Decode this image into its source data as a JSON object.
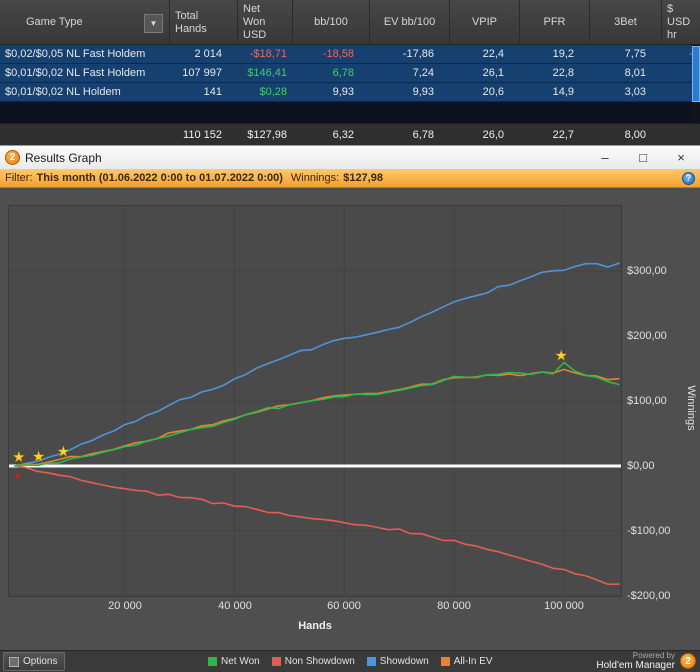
{
  "stats_table": {
    "columns": [
      "Game Type",
      "Total\nHands",
      "Net\nWon\nUSD",
      "bb/100",
      "EV bb/100",
      "VPIP",
      "PFR",
      "3Bet",
      "$\nUSD\nhr"
    ],
    "filter_dropdown_icon": "▼",
    "rows": [
      [
        "$0,02/$0,05 NL Fast Holdem",
        "2 014",
        "-$18,71",
        "-18,58",
        "-17,86",
        "22,4",
        "19,2",
        "7,75",
        "-$"
      ],
      [
        "$0,01/$0,02 NL Fast Holdem",
        "107 997",
        "$146,41",
        "6,78",
        "7,24",
        "26,1",
        "22,8",
        "8,01",
        "$"
      ],
      [
        "$0,01/$0,02 NL Holdem",
        "141",
        "$0,28",
        "9,93",
        "9,93",
        "20,6",
        "14,9",
        "3,03",
        "$"
      ]
    ],
    "summary": [
      "",
      "110 152",
      "$127,98",
      "6,32",
      "6,78",
      "26,0",
      "22,7",
      "8,00",
      ""
    ]
  },
  "window": {
    "title": "Results Graph",
    "logo_text": "2",
    "minimize_icon": "–",
    "maximize_icon": "□",
    "close_icon": "×"
  },
  "filter_bar": {
    "label": "Filter:",
    "range": "This month (01.06.2022 0:00 to 01.07.2022 0:00)",
    "winnings_label": "Winnings:",
    "winnings_value": "$127,98",
    "help_icon": "?"
  },
  "chart_data": {
    "type": "line",
    "xlabel": "Hands",
    "ylabel": "Winnings",
    "xlim": [
      0,
      110500
    ],
    "ylim": [
      -200,
      400
    ],
    "x_start": 0,
    "x_step": 2000,
    "x_tick_values": [
      20000,
      40000,
      60000,
      80000,
      100000
    ],
    "x_tick_labels": [
      "20 000",
      "40 000",
      "60 000",
      "80 000",
      "100 000"
    ],
    "y_tick_values": [
      300,
      200,
      100,
      0,
      -100,
      -200
    ],
    "y_tick_labels": [
      "$300,00",
      "$200,00",
      "$100,00",
      "$0,00",
      "-$100,00",
      "-$200,00"
    ],
    "zero_line_color": "#ffffff",
    "grid_color": "#414141",
    "series": [
      {
        "name": "Net Won",
        "color": "#2eb84b",
        "values": [
          0,
          1,
          2,
          5,
          6,
          11,
          14,
          16,
          20,
          24,
          28,
          33,
          38,
          42,
          47,
          53,
          56,
          59,
          62,
          68,
          73,
          78,
          83,
          88,
          90,
          94,
          98,
          99,
          102,
          106,
          108,
          110,
          109,
          111,
          113,
          115,
          118,
          122,
          126,
          132,
          136,
          138,
          137,
          140,
          142,
          144,
          143,
          142,
          144,
          143,
          158,
          146,
          139,
          136,
          128,
          127
        ]
      },
      {
        "name": "Non Showdown",
        "color": "#e25d52",
        "values": [
          0,
          -4,
          -7,
          -10,
          -13,
          -16,
          -20,
          -24,
          -28,
          -31,
          -34,
          -37,
          -40,
          -43,
          -45,
          -47,
          -50,
          -53,
          -56,
          -58,
          -61,
          -64,
          -67,
          -70,
          -73,
          -76,
          -78,
          -81,
          -84,
          -86,
          -88,
          -90,
          -93,
          -95,
          -97,
          -99,
          -102,
          -106,
          -110,
          -113,
          -116,
          -120,
          -124,
          -128,
          -132,
          -136,
          -141,
          -147,
          -152,
          -157,
          -161,
          -166,
          -171,
          -176,
          -180,
          -183
        ]
      },
      {
        "name": "Showdown",
        "color": "#4f94d8",
        "values": [
          0,
          4,
          8,
          14,
          18,
          26,
          34,
          40,
          48,
          55,
          62,
          70,
          78,
          85,
          92,
          100,
          106,
          112,
          118,
          126,
          134,
          142,
          150,
          158,
          163,
          170,
          176,
          180,
          186,
          192,
          196,
          200,
          202,
          206,
          210,
          214,
          220,
          228,
          236,
          245,
          252,
          258,
          262,
          268,
          274,
          280,
          284,
          290,
          296,
          300,
          302,
          306,
          310,
          312,
          308,
          310
        ]
      },
      {
        "name": "All-In EV",
        "color": "#e0862e",
        "values": [
          0,
          2,
          3,
          6,
          8,
          13,
          15,
          18,
          22,
          26,
          31,
          35,
          40,
          44,
          49,
          54,
          57,
          60,
          64,
          70,
          75,
          80,
          84,
          89,
          92,
          96,
          99,
          101,
          104,
          107,
          109,
          112,
          111,
          113,
          115,
          117,
          120,
          124,
          128,
          133,
          135,
          136,
          136,
          139,
          141,
          142,
          141,
          142,
          143,
          142,
          150,
          144,
          140,
          138,
          133,
          134
        ]
      }
    ],
    "markers": {
      "star_icon": "★",
      "star_color": "#ffd21e",
      "stars": [
        {
          "x": 700,
          "v": 14
        },
        {
          "x": 4300,
          "v": 15
        },
        {
          "x": 8800,
          "v": 22
        },
        {
          "x": 99500,
          "v": 170
        }
      ],
      "triangle_icon": "▼",
      "triangle_color": "#cc1f1f",
      "triangle": {
        "x": 500,
        "v": -15
      }
    }
  },
  "footer": {
    "options_label": "Options",
    "powered_by": "Powered by",
    "brand": "Hold'em Manager",
    "logo_text": "2"
  }
}
